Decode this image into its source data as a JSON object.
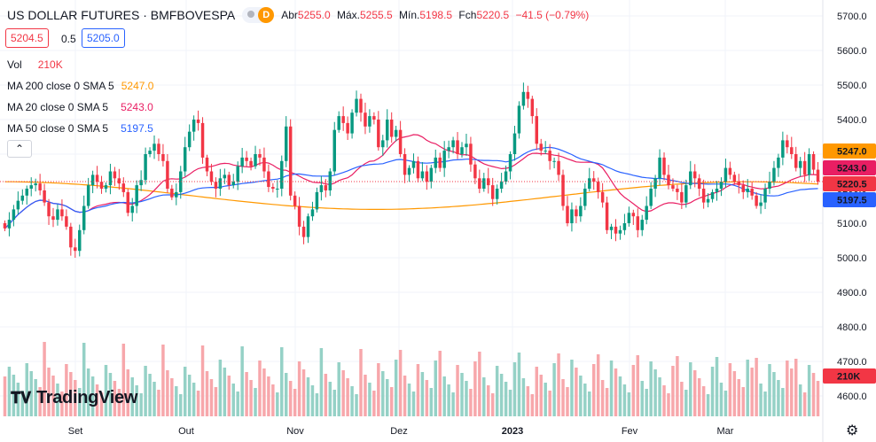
{
  "header": {
    "symbol": "US DOLLAR FUTURES · BMFBOVESPA",
    "badge": "D",
    "open_label": "Abr",
    "open": "5255.0",
    "high_label": "Máx.",
    "high": "5255.5",
    "low_label": "Mín.",
    "low": "5198.5",
    "close_label": "Fch",
    "close": "5220.5",
    "change": "−41.5 (−0.79%)",
    "bid": "5204.5",
    "spread": "0.5",
    "ask": "5205.0"
  },
  "legend": {
    "vol_label": "Vol",
    "vol_value": "210K",
    "ma200_label": "MA 200 close 0 SMA 5",
    "ma200_value": "5247.0",
    "ma20_label": "MA 20 close 0 SMA 5",
    "ma20_value": "5243.0",
    "ma50_label": "MA 50 close 0 SMA 5",
    "ma50_value": "5197.5",
    "collapse_icon": "chevron-up-icon"
  },
  "branding": {
    "logo_text": "TradingView"
  },
  "colors": {
    "up": "#089981",
    "down": "#f23645",
    "ma200": "#ff9800",
    "ma20": "#e91e63",
    "ma50": "#2962ff",
    "up_vol": "#95d1c6",
    "down_vol": "#f7a7ab"
  },
  "chart_data": {
    "type": "candlestick",
    "price_axis": {
      "ticks": [
        4600,
        4700,
        4800,
        4900,
        5000,
        5100,
        5200,
        5300,
        5400,
        5500,
        5600,
        5700
      ],
      "tick_labels": [
        "4600.0",
        "4700.0",
        "4800.0",
        "4900.0",
        "5000.0",
        "5100.0",
        "5200.0",
        "5300.0",
        "5400.0",
        "5500.0",
        "5600.0",
        "5700.0"
      ]
    },
    "time_axis": {
      "labels": [
        "Set",
        "Out",
        "Nov",
        "Dez",
        "2023",
        "Fev",
        "Mar"
      ]
    },
    "last_price": 5220.5,
    "price_labels": [
      {
        "name": "ma200",
        "value": "5247.0",
        "color": "#ff9800"
      },
      {
        "name": "ma20",
        "value": "5243.0",
        "color": "#e91e63"
      },
      {
        "name": "last",
        "value": "5220.5",
        "color": "#f23645"
      },
      {
        "name": "ma50",
        "value": "5197.5",
        "color": "#2962ff"
      },
      {
        "name": "volume",
        "value": "210K",
        "color": "#f23645"
      }
    ],
    "closes": [
      5085,
      5110,
      5140,
      5165,
      5180,
      5200,
      5210,
      5215,
      5195,
      5160,
      5120,
      5110,
      5140,
      5120,
      5090,
      5030,
      5020,
      5080,
      5150,
      5210,
      5240,
      5220,
      5200,
      5210,
      5250,
      5230,
      5215,
      5190,
      5130,
      5150,
      5210,
      5225,
      5300,
      5310,
      5330,
      5300,
      5280,
      5200,
      5175,
      5190,
      5250,
      5320,
      5365,
      5400,
      5390,
      5290,
      5250,
      5220,
      5200,
      5230,
      5240,
      5210,
      5220,
      5265,
      5290,
      5280,
      5265,
      5300,
      5290,
      5250,
      5205,
      5200,
      5200,
      5280,
      5380,
      5180,
      5150,
      5090,
      5060,
      5120,
      5140,
      5190,
      5210,
      5195,
      5250,
      5370,
      5410,
      5390,
      5360,
      5420,
      5460,
      5420,
      5380,
      5410,
      5400,
      5320,
      5340,
      5400,
      5350,
      5370,
      5300,
      5240,
      5260,
      5280,
      5230,
      5250,
      5220,
      5260,
      5290,
      5260,
      5310,
      5320,
      5340,
      5300,
      5320,
      5330,
      5270,
      5230,
      5200,
      5230,
      5210,
      5170,
      5200,
      5220,
      5250,
      5300,
      5360,
      5440,
      5480,
      5460,
      5410,
      5330,
      5310,
      5310,
      5280,
      5280,
      5240,
      5150,
      5100,
      5140,
      5120,
      5150,
      5200,
      5230,
      5220,
      5190,
      5160,
      5080,
      5090,
      5070,
      5080,
      5100,
      5130,
      5120,
      5080,
      5110,
      5150,
      5200,
      5230,
      5290,
      5240,
      5210,
      5200,
      5190,
      5160,
      5210,
      5250,
      5230,
      5200,
      5160,
      5170,
      5190,
      5200,
      5220,
      5260,
      5240,
      5220,
      5210,
      5190,
      5200,
      5180,
      5150,
      5160,
      5200,
      5220,
      5260,
      5290,
      5340,
      5320,
      5300,
      5260,
      5280,
      5240,
      5300,
      5255,
      5220.5
    ],
    "volume_note": "volume histogram shown beneath candles, last bar 210K",
    "moving_averages": [
      {
        "name": "MA 200 close 0 SMA 5",
        "value": 5247.0
      },
      {
        "name": "MA 20 close 0 SMA 5",
        "value": 5243.0
      },
      {
        "name": "MA 50 close 0 SMA 5",
        "value": 5197.5
      }
    ]
  }
}
